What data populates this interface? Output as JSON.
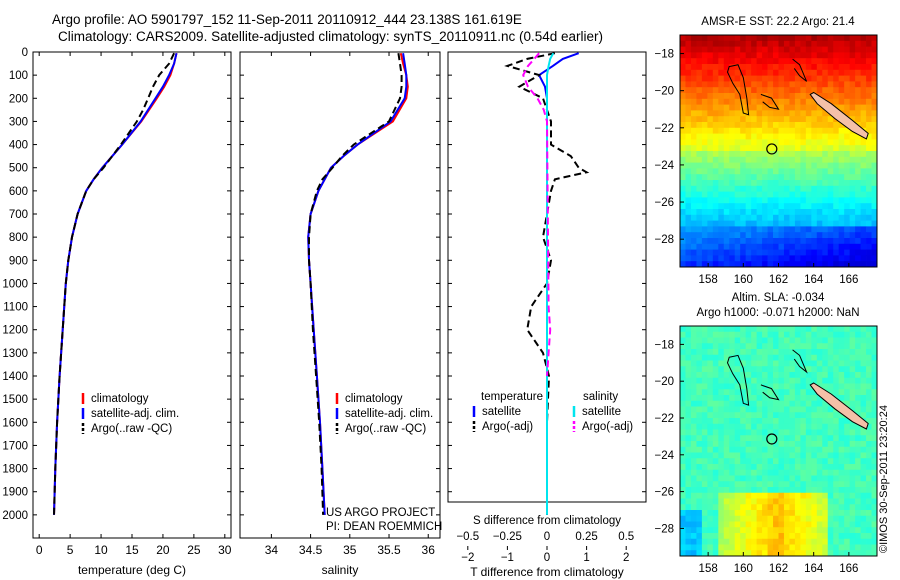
{
  "header": {
    "line1": "Argo profile: AO 5901797_152 11-Sep-2011 20110912_444 23.138S 161.619E",
    "line2": "Climatology: CARS2009. Satellite-adjusted climatology: synTS_20110911.nc (0.54d earlier)"
  },
  "colors": {
    "climatology": "#ff0000",
    "satellite": "#0000ff",
    "argo": "#000000",
    "t_satellite": "#0000ff",
    "s_satellite": "#00e5ee",
    "t_argo": "#000000",
    "s_argo": "#ff00ff"
  },
  "chart_data": [
    {
      "id": "temperature",
      "type": "line",
      "xlabel": "temperature (deg C)",
      "ylabel": "",
      "xlim": [
        -1,
        31
      ],
      "ylim": [
        2100,
        0
      ],
      "xticks": [
        0,
        5,
        10,
        15,
        20,
        25,
        30
      ],
      "xtick_labels": [
        "0",
        "5",
        "10",
        "15",
        "20",
        "25",
        "30"
      ],
      "yticks": [
        0,
        100,
        200,
        300,
        400,
        500,
        600,
        700,
        800,
        900,
        1000,
        1100,
        1200,
        1300,
        1400,
        1500,
        1600,
        1700,
        1800,
        1900,
        2000
      ],
      "ytick_labels": [
        "0",
        "100",
        "200",
        "300",
        "400",
        "500",
        "600",
        "700",
        "800",
        "900",
        "1000",
        "1100",
        "1200",
        "1300",
        "1400",
        "1500",
        "1600",
        "1700",
        "1800",
        "1900",
        "2000"
      ],
      "legend": [
        "climatology",
        "satellite-adj. clim.",
        "Argo(..raw -QC)"
      ],
      "legend_position": "lower-middle",
      "series": [
        {
          "name": "climatology",
          "style": "solid",
          "depth": [
            5,
            50,
            100,
            150,
            200,
            300,
            400,
            500,
            550,
            600,
            700,
            800,
            900,
            1000,
            1200,
            1400,
            1600,
            1800,
            2000
          ],
          "values": [
            22.2,
            21.8,
            21.2,
            20.2,
            19.0,
            16.5,
            13.4,
            10.2,
            8.8,
            7.6,
            6.2,
            5.3,
            4.7,
            4.3,
            3.8,
            3.3,
            2.9,
            2.6,
            2.4
          ]
        },
        {
          "name": "satellite-adj. clim.",
          "style": "solid",
          "depth": [
            5,
            50,
            100,
            150,
            200,
            300,
            400,
            500,
            550,
            600,
            700,
            800,
            900,
            1000,
            1200,
            1400,
            1600,
            1800,
            2000
          ],
          "values": [
            22.2,
            21.8,
            21.0,
            20.0,
            18.8,
            16.4,
            13.4,
            10.2,
            8.8,
            7.6,
            6.2,
            5.3,
            4.7,
            4.3,
            3.8,
            3.3,
            2.9,
            2.6,
            2.4
          ]
        },
        {
          "name": "Argo(..raw -QC)",
          "style": "dashed",
          "depth": [
            5,
            50,
            100,
            150,
            200,
            250,
            300,
            400,
            500,
            550,
            600,
            700,
            800,
            900,
            1000,
            1200,
            1400,
            1600,
            1800,
            2000
          ],
          "values": [
            21.8,
            21.0,
            19.4,
            18.4,
            17.6,
            16.8,
            15.8,
            13.2,
            10.4,
            8.8,
            7.6,
            6.2,
            5.3,
            4.7,
            4.3,
            3.8,
            3.3,
            2.9,
            2.6,
            2.4
          ]
        }
      ]
    },
    {
      "id": "salinity",
      "type": "line",
      "xlabel": "salinity",
      "xlim": [
        33.6,
        36.15
      ],
      "ylim": [
        2100,
        0
      ],
      "xticks": [
        34,
        34.5,
        35,
        35.5,
        36
      ],
      "xtick_labels": [
        "34",
        "34.5",
        "35",
        "35.5",
        "36"
      ],
      "legend": [
        "climatology",
        "satellite-adj. clim.",
        "Argo(..raw -QC)"
      ],
      "legend_position": "lower-middle",
      "annotation": [
        "US ARGO PROJECT",
        "PI: DEAN ROEMMICH"
      ],
      "series": [
        {
          "name": "climatology",
          "style": "solid",
          "depth": [
            5,
            50,
            100,
            150,
            200,
            300,
            400,
            450,
            500,
            600,
            700,
            800,
            900,
            1000,
            1200,
            1400,
            1600,
            1800,
            2000
          ],
          "values": [
            35.65,
            35.68,
            35.72,
            35.74,
            35.72,
            35.55,
            35.1,
            34.92,
            34.76,
            34.6,
            34.5,
            34.47,
            34.48,
            34.5,
            34.54,
            34.58,
            34.62,
            34.65,
            34.68
          ]
        },
        {
          "name": "satellite-adj. clim.",
          "style": "solid",
          "depth": [
            5,
            50,
            100,
            150,
            200,
            300,
            400,
            450,
            500,
            600,
            700,
            800,
            900,
            1000,
            1200,
            1400,
            1600,
            1800,
            2000
          ],
          "values": [
            35.68,
            35.7,
            35.72,
            35.72,
            35.7,
            35.52,
            35.1,
            34.92,
            34.76,
            34.6,
            34.5,
            34.47,
            34.48,
            34.5,
            34.54,
            34.58,
            34.62,
            34.65,
            34.68
          ]
        },
        {
          "name": "Argo(..raw -QC)",
          "style": "dashed",
          "depth": [
            5,
            50,
            100,
            150,
            200,
            300,
            400,
            450,
            500,
            550,
            600,
            700,
            800,
            900,
            1000,
            1200,
            1400,
            1600,
            1800,
            2000
          ],
          "values": [
            35.62,
            35.64,
            35.66,
            35.66,
            35.64,
            35.5,
            35.05,
            34.9,
            34.78,
            34.65,
            34.58,
            34.5,
            34.48,
            34.48,
            34.5,
            34.53,
            34.57,
            34.61,
            34.64,
            34.66
          ]
        }
      ]
    },
    {
      "id": "differences",
      "type": "line",
      "xlabel": "T difference from climatology",
      "xlabel_top": "S difference from climatology",
      "xlim": [
        -2.5,
        2.5
      ],
      "ylim": [
        2100,
        0
      ],
      "xticks": [
        -2,
        -1,
        0,
        1,
        2
      ],
      "xtick_labels": [
        "−2",
        "−1",
        "0",
        "1",
        "2"
      ],
      "sticks": [
        -0.5,
        -0.25,
        0,
        0.25,
        0.5
      ],
      "stick_labels": [
        "−0.5",
        "−0.25",
        "0",
        "0.25",
        "0.5"
      ],
      "s_scale_factor": 4,
      "legend_temperature_title": "temperature",
      "legend_salinity_title": "salinity",
      "legend_temperature": [
        "satellite",
        "Argo(-adj)"
      ],
      "legend_salinity": [
        "satellite",
        "Argo(-adj)"
      ],
      "series": [
        {
          "name": "T satellite",
          "style": "solid",
          "depth": [
            5,
            30,
            60,
            100,
            150,
            200,
            300,
            500,
            800,
            1200,
            1600,
            2000
          ],
          "values": [
            0.8,
            0.4,
            0.15,
            -0.2,
            -0.05,
            0.0,
            0.0,
            0.0,
            0.0,
            0.0,
            0.0,
            0.0
          ]
        },
        {
          "name": "T Argo(-adj)",
          "style": "dashed",
          "depth": [
            5,
            30,
            60,
            100,
            150,
            200,
            250,
            300,
            400,
            450,
            500,
            520,
            550,
            600,
            700,
            800,
            900,
            1000,
            1100,
            1200,
            1300,
            1400,
            1600,
            1800,
            2000
          ],
          "values": [
            0.2,
            -0.5,
            -1.0,
            -0.2,
            -0.7,
            -0.1,
            0.0,
            0.1,
            0.1,
            0.6,
            0.8,
            1.0,
            0.2,
            0.1,
            0.0,
            -0.1,
            0.1,
            0.0,
            -0.4,
            -0.5,
            -0.1,
            0.05,
            0.0,
            0.0,
            0.0
          ]
        },
        {
          "name": "S satellite",
          "style": "solid",
          "depth": [
            5,
            30,
            60,
            100,
            150,
            200,
            300,
            500,
            800,
            1200,
            1600,
            2000
          ],
          "s_values": [
            0.04,
            0.02,
            0.01,
            0.0,
            0.0,
            0.0,
            0.0,
            0.0,
            0.0,
            0.0,
            0.0,
            0.0
          ]
        },
        {
          "name": "S Argo(-adj)",
          "style": "dashed",
          "depth": [
            5,
            30,
            60,
            100,
            150,
            200,
            250,
            300,
            1100,
            1200,
            1300,
            1400
          ],
          "s_values": [
            -0.05,
            -0.08,
            -0.12,
            -0.15,
            -0.12,
            -0.06,
            -0.02,
            0.0,
            0.01,
            0.02,
            0.01,
            0.0
          ]
        }
      ]
    },
    {
      "id": "sst_map",
      "type": "heatmap",
      "title": "AMSR-E SST: 22.2  Argo: 21.4",
      "xlim": [
        156.4,
        167.6
      ],
      "ylim": [
        -29.5,
        -17.0
      ],
      "xticks": [
        158,
        160,
        162,
        164,
        166
      ],
      "xtick_labels": [
        "158",
        "160",
        "162",
        "164",
        "166"
      ],
      "yticks": [
        -18,
        -20,
        -22,
        -24,
        -26,
        -28
      ],
      "ytick_labels": [
        "−18",
        "−20",
        "−22",
        "−24",
        "−26",
        "−28"
      ],
      "float_position": [
        161.62,
        -23.14
      ],
      "colormap": "jet",
      "value_range": [
        18,
        27
      ]
    },
    {
      "id": "sla_map",
      "type": "heatmap",
      "title": "Altim. SLA: -0.034",
      "subtitle": "Argo h1000: -0.071  h2000: NaN",
      "xlim": [
        156.4,
        167.6
      ],
      "ylim": [
        -29.5,
        -17.0
      ],
      "xticks": [
        158,
        160,
        162,
        164,
        166
      ],
      "xtick_labels": [
        "158",
        "160",
        "162",
        "164",
        "166"
      ],
      "yticks": [
        -18,
        -20,
        -22,
        -24,
        -26,
        -28
      ],
      "ytick_labels": [
        "−18",
        "−20",
        "−22",
        "−24",
        "−26",
        "−28"
      ],
      "float_position": [
        161.62,
        -23.14
      ],
      "colormap": "jet",
      "value_range": [
        -0.3,
        0.3
      ]
    }
  ],
  "footer": {
    "stamp": "©IMOS 30-Sep-2011 23:20:24"
  }
}
